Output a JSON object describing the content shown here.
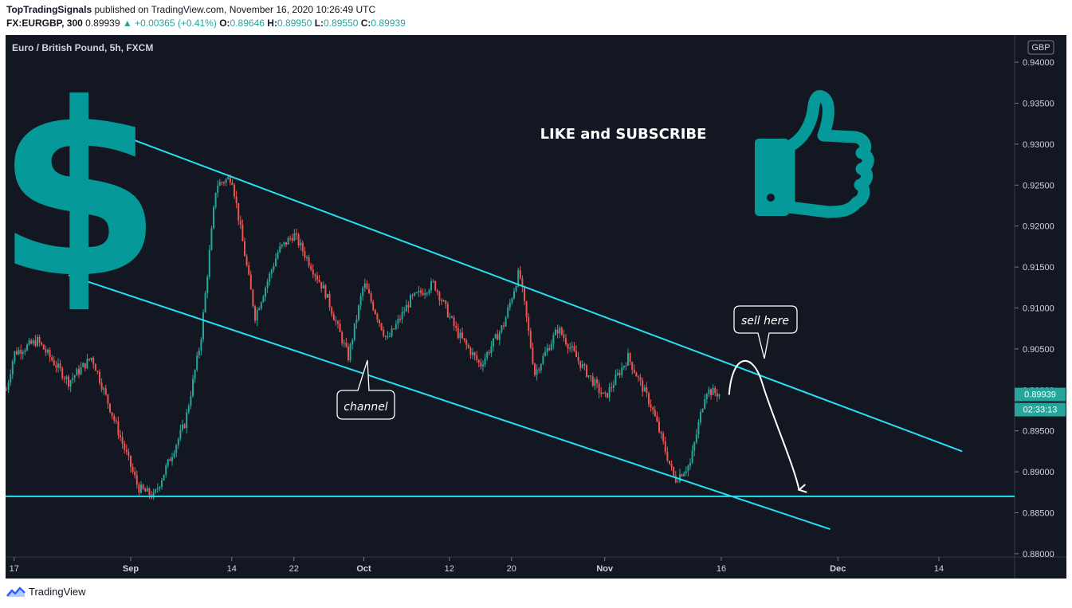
{
  "header": {
    "author": "TopTradingSignals",
    "published": "published on TradingView.com, November 16, 2020 10:26:49 UTC",
    "symbol": "FX:EURGBP, 300",
    "last": "0.89939",
    "change": "▲ +0.00365 (+0.41%)",
    "open_label": "O:",
    "open": "0.89646",
    "high_label": "H:",
    "high": "0.89950",
    "low_label": "L:",
    "low": "0.89550",
    "close_label": "C:",
    "close": "0.89939"
  },
  "chart_title": "Euro / British Pound, 5h, FXCM",
  "currency_badge": "GBP",
  "price_tag": "0.89939",
  "countdown_tag": "02:33:13",
  "promo_text": "LIKE and SUBSCRIBE",
  "annotations": {
    "channel": "channel",
    "sell": "sell here"
  },
  "footer": {
    "brand": "TradingView"
  },
  "colors": {
    "up": "#26a69a",
    "down": "#ef5350",
    "trendline": "#26e0f0",
    "teal_icon": "#05999a",
    "background": "#131722"
  },
  "chart_data": {
    "type": "candlestick",
    "title": "Euro / British Pound, 5h, FXCM",
    "y_ticks": [
      "0.94000",
      "0.93500",
      "0.93000",
      "0.92500",
      "0.92000",
      "0.91500",
      "0.91000",
      "0.90500",
      "0.90000",
      "0.89500",
      "0.89000",
      "0.88500",
      "0.88000"
    ],
    "ylim": [
      0.8795,
      0.9403
    ],
    "x_ticks": [
      "17",
      "Sep",
      "14",
      "22",
      "Oct",
      "12",
      "20",
      "Nov",
      "16",
      "Dec",
      "14"
    ],
    "price_path": [
      {
        "date": "Aug 16",
        "price": 0.9
      },
      {
        "date": "Aug 17",
        "price": 0.9045
      },
      {
        "date": "Aug 20",
        "price": 0.906
      },
      {
        "date": "Aug 24",
        "price": 0.901
      },
      {
        "date": "Aug 27",
        "price": 0.904
      },
      {
        "date": "Aug 30",
        "price": 0.896
      },
      {
        "date": "Sep 2",
        "price": 0.888
      },
      {
        "date": "Sep 4",
        "price": 0.887
      },
      {
        "date": "Sep 8",
        "price": 0.896
      },
      {
        "date": "Sep 10",
        "price": 0.906
      },
      {
        "date": "Sep 12",
        "price": 0.925
      },
      {
        "date": "Sep 14",
        "price": 0.926
      },
      {
        "date": "Sep 17",
        "price": 0.909
      },
      {
        "date": "Sep 20",
        "price": 0.917
      },
      {
        "date": "Sep 22",
        "price": 0.919
      },
      {
        "date": "Sep 26",
        "price": 0.912
      },
      {
        "date": "Sep 29",
        "price": 0.904
      },
      {
        "date": "Oct 1",
        "price": 0.913
      },
      {
        "date": "Oct 4",
        "price": 0.906
      },
      {
        "date": "Oct 7",
        "price": 0.911
      },
      {
        "date": "Oct 10",
        "price": 0.913
      },
      {
        "date": "Oct 13",
        "price": 0.907
      },
      {
        "date": "Oct 16",
        "price": 0.903
      },
      {
        "date": "Oct 19",
        "price": 0.908
      },
      {
        "date": "Oct 21",
        "price": 0.9145
      },
      {
        "date": "Oct 23",
        "price": 0.902
      },
      {
        "date": "Oct 26",
        "price": 0.9075
      },
      {
        "date": "Oct 29",
        "price": 0.903
      },
      {
        "date": "Nov 1",
        "price": 0.899
      },
      {
        "date": "Nov 4",
        "price": 0.904
      },
      {
        "date": "Nov 7",
        "price": 0.898
      },
      {
        "date": "Nov 10",
        "price": 0.889
      },
      {
        "date": "Nov 12",
        "price": 0.891
      },
      {
        "date": "Nov 14",
        "price": 0.9
      },
      {
        "date": "Nov 16",
        "price": 0.8994
      }
    ],
    "trendlines": [
      {
        "name": "upper",
        "from": {
          "date": "Aug 31",
          "price": 0.931
        },
        "to": {
          "date": "Dec 17",
          "price": 0.8925
        }
      },
      {
        "name": "lower",
        "from": {
          "date": "Aug 24",
          "price": 0.914
        },
        "to": {
          "date": "Nov 30",
          "price": 0.883
        }
      },
      {
        "name": "support",
        "from": {
          "date": "Aug 16",
          "price": 0.887
        },
        "to": {
          "date": "Dec 31",
          "price": 0.887
        }
      }
    ],
    "projection": {
      "from": {
        "date": "Nov 17",
        "price": 0.8994
      },
      "peak": {
        "date": "Nov 19",
        "price": 0.9028
      },
      "to": {
        "date": "Nov 26",
        "price": 0.8878
      }
    },
    "last_price": 0.89939,
    "grid": false,
    "legend": "none"
  }
}
